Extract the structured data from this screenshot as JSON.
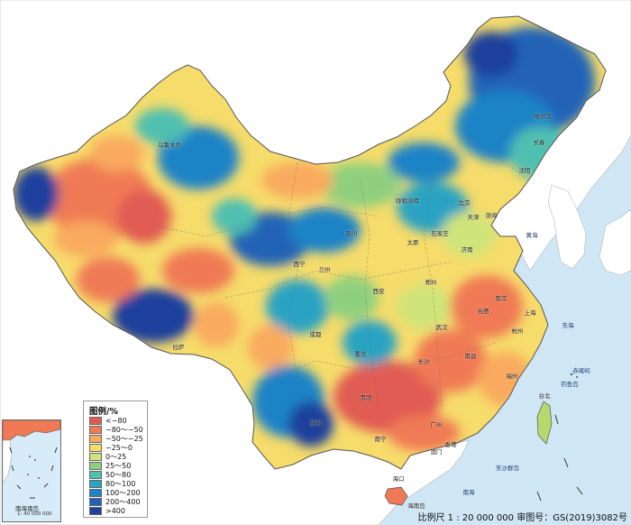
{
  "legend": {
    "title": "图例/%",
    "items": [
      {
        "label": "<−80",
        "color": "#e15b52"
      },
      {
        "label": "−80～−50",
        "color": "#f07a55"
      },
      {
        "label": "−50～−25",
        "color": "#f9aa5e"
      },
      {
        "label": "−25～0",
        "color": "#f6dc6a"
      },
      {
        "label": "0～25",
        "color": "#cfe47a"
      },
      {
        "label": "25～50",
        "color": "#8fd07f"
      },
      {
        "label": "50～80",
        "color": "#4fbfb0"
      },
      {
        "label": "80～100",
        "color": "#2aa3c2"
      },
      {
        "label": "100～200",
        "color": "#1f83c6"
      },
      {
        "label": "200～400",
        "color": "#2363b6"
      },
      {
        "label": ">400",
        "color": "#1f3f9c"
      }
    ]
  },
  "inset": {
    "label": "南海诸岛",
    "scale": "1: 40 000 000",
    "island_label": "海南岛"
  },
  "footer": {
    "text": "比例尺 1 : 20 000 000   审图号：GS(2019)3082号"
  },
  "cities": [
    {
      "id": "urumqi",
      "name": "乌鲁木齐"
    },
    {
      "id": "harbin",
      "name": "哈尔滨"
    },
    {
      "id": "changchun",
      "name": "长春"
    },
    {
      "id": "shenyang",
      "name": "沈阳"
    },
    {
      "id": "hohhot",
      "name": "呼和浩特"
    },
    {
      "id": "beijing",
      "name": "北京"
    },
    {
      "id": "tianjin",
      "name": "天津"
    },
    {
      "id": "shijiazhuang",
      "name": "石家庄"
    },
    {
      "id": "taiyuan",
      "name": "太原"
    },
    {
      "id": "jinan",
      "name": "济南"
    },
    {
      "id": "yinchuan",
      "name": "银川"
    },
    {
      "id": "xining",
      "name": "西宁"
    },
    {
      "id": "lanzhou",
      "name": "兰州"
    },
    {
      "id": "xian",
      "name": "西安"
    },
    {
      "id": "zhengzhou",
      "name": "郑州"
    },
    {
      "id": "nanjing",
      "name": "南京"
    },
    {
      "id": "shanghai",
      "name": "上海"
    },
    {
      "id": "hefei",
      "name": "合肥"
    },
    {
      "id": "wuhan",
      "name": "武汉"
    },
    {
      "id": "hangzhou",
      "name": "杭州"
    },
    {
      "id": "chengdu",
      "name": "成都"
    },
    {
      "id": "chongqing",
      "name": "重庆"
    },
    {
      "id": "changsha",
      "name": "长沙"
    },
    {
      "id": "nanchang",
      "name": "南昌"
    },
    {
      "id": "fuzhou",
      "name": "福州"
    },
    {
      "id": "guiyang",
      "name": "贵阳"
    },
    {
      "id": "kunming",
      "name": "昆明"
    },
    {
      "id": "nanning",
      "name": "南宁"
    },
    {
      "id": "guangzhou",
      "name": "广州"
    },
    {
      "id": "lhasa",
      "name": "拉萨"
    },
    {
      "id": "taipei",
      "name": "台北"
    },
    {
      "id": "haikou",
      "name": "海口"
    },
    {
      "id": "hongkong",
      "name": "香港"
    },
    {
      "id": "macau",
      "name": "澳门"
    }
  ],
  "seas": [
    {
      "id": "yellow-sea",
      "name": "黄海"
    },
    {
      "id": "east-china-sea",
      "name": "东海"
    },
    {
      "id": "south-china-sea",
      "name": "南海"
    },
    {
      "id": "bohai",
      "name": "渤海"
    },
    {
      "id": "chiwei",
      "name": "赤尾屿"
    },
    {
      "id": "diaoyu",
      "name": "钓鱼岛"
    },
    {
      "id": "dongsha",
      "name": "东沙群岛"
    }
  ]
}
